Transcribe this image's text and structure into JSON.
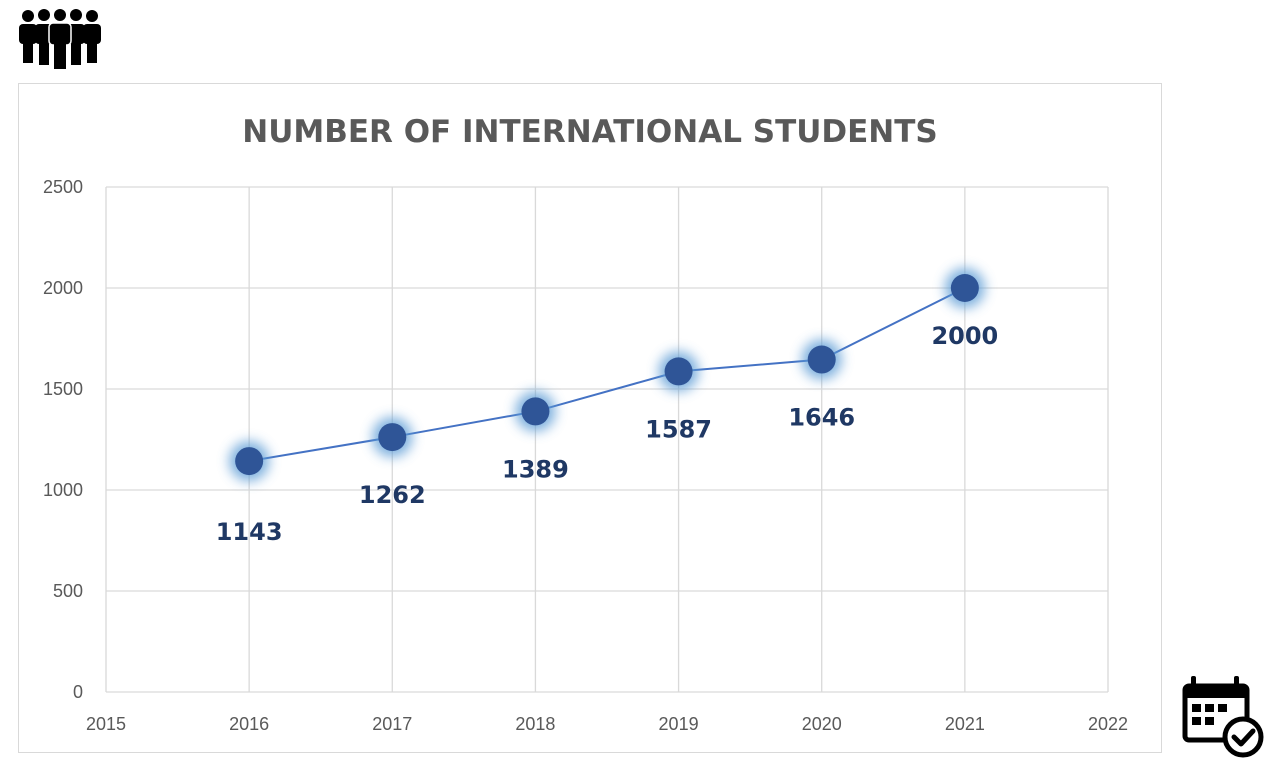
{
  "chart_data": {
    "type": "line",
    "title": "NUMBER OF INTERNATIONAL STUDENTS",
    "xlabel": "",
    "ylabel": "",
    "x": [
      2016,
      2017,
      2018,
      2019,
      2020,
      2021
    ],
    "values": [
      1143,
      1262,
      1389,
      1587,
      1646,
      2000
    ],
    "data_labels": [
      "1143",
      "1262",
      "1389",
      "1587",
      "1646",
      "2000"
    ],
    "xlim": [
      2015,
      2022
    ],
    "ylim": [
      0,
      2500
    ],
    "x_ticks": [
      "2015",
      "2016",
      "2017",
      "2018",
      "2019",
      "2020",
      "2021",
      "2022"
    ],
    "y_ticks": [
      "0",
      "500",
      "1000",
      "1500",
      "2000",
      "2500"
    ],
    "grid": true,
    "legend": "none",
    "colors": {
      "line": "#4472c4",
      "marker": "#2f5597",
      "glow": "#5b9bd5",
      "label": "#1f3864",
      "grid": "#d9d9d9"
    }
  },
  "icons": {
    "top_left": "people-group-icon",
    "bottom_right": "calendar-check-icon"
  }
}
